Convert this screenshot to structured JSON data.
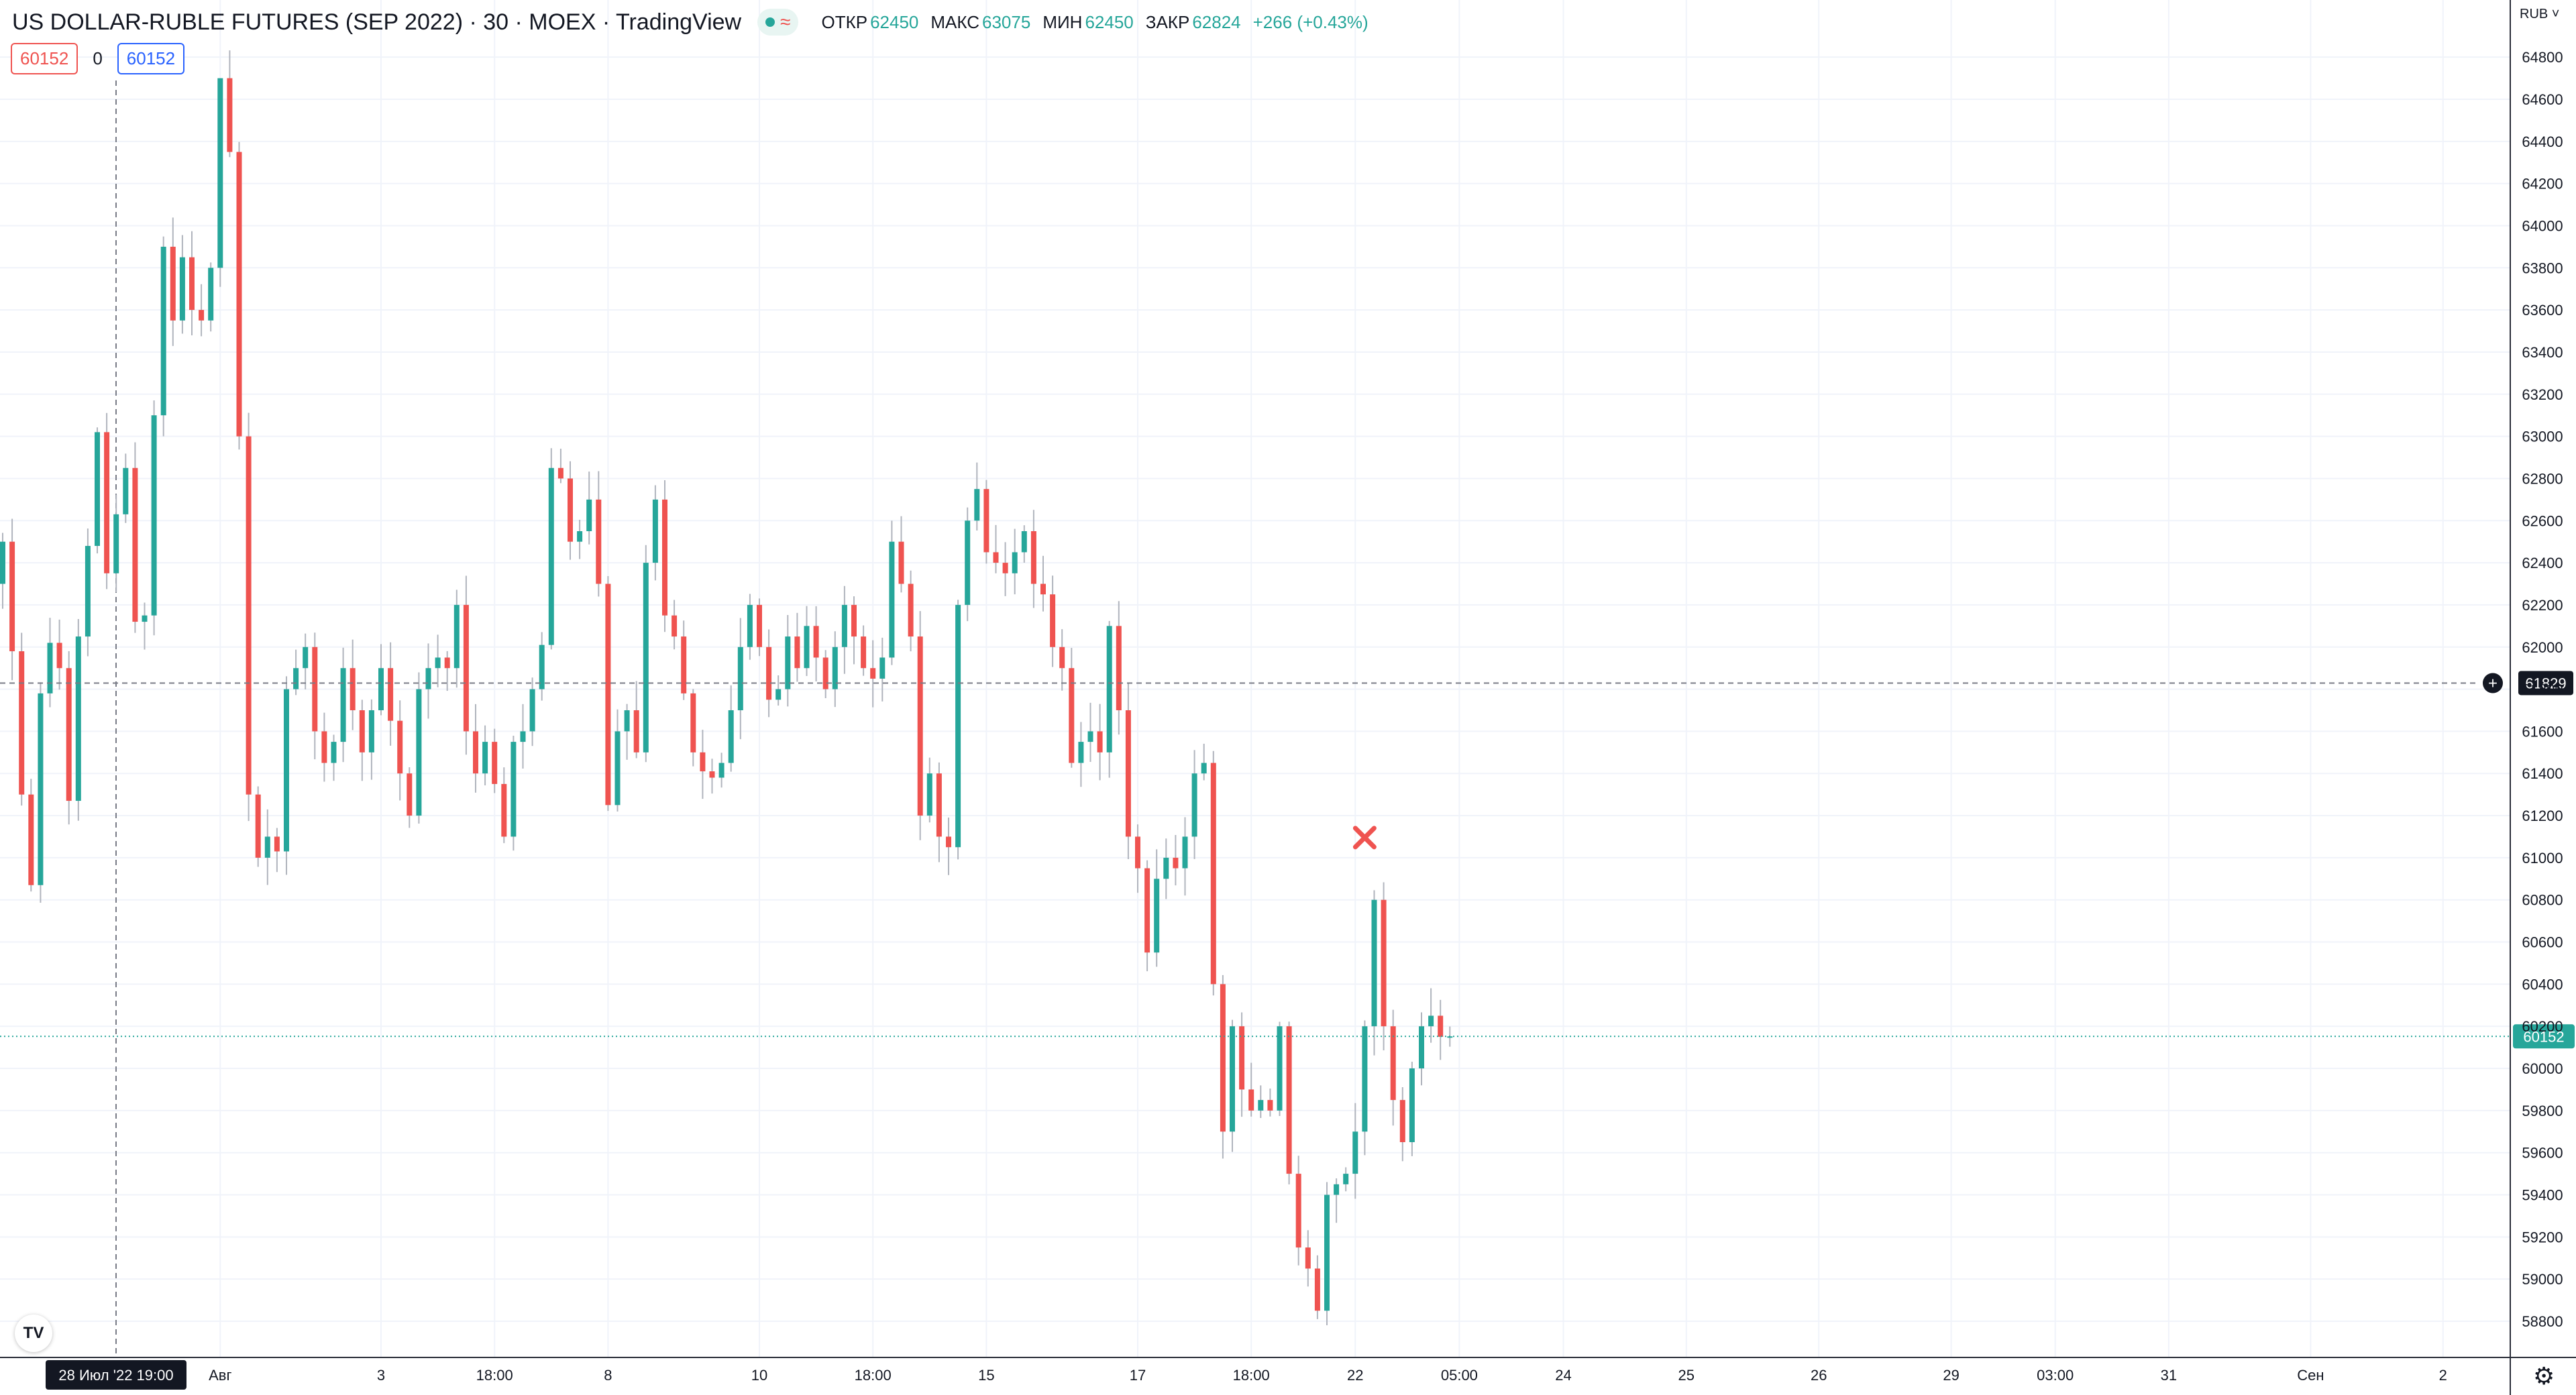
{
  "header": {
    "symbol": "US DOLLAR-RUBLE FUTURES (SEP 2022) · 30 · MOEX · TradingView",
    "market_status_icon": "market-open-dot",
    "ohlc": {
      "open_label": "ОТКР",
      "open": "62450",
      "high_label": "МАКС",
      "high": "63075",
      "low_label": "МИН",
      "low": "62450",
      "close_label": "ЗАКР",
      "close": "62824",
      "change": "+266 (+0.43%)"
    }
  },
  "order_panel": {
    "sell": "60152",
    "spread": "0",
    "buy": "60152"
  },
  "currency_label": "RUB",
  "crosshair": {
    "price_label": "61829",
    "time_label": "28 Июл '22   19:00"
  },
  "colors": {
    "up": "#26a69a",
    "down": "#ef5350",
    "grid": "#f0f3fa",
    "text": "#131722",
    "last_price": "#26a69a"
  },
  "chart_data": {
    "type": "candlestick",
    "title": "US DOLLAR-RUBLE FUTURES (SEP 2022)",
    "interval": "30",
    "exchange": "MOEX",
    "ylim": [
      58700,
      64900
    ],
    "y_ticks": [
      58800,
      59000,
      59200,
      59400,
      59600,
      59800,
      60000,
      60200,
      60400,
      60600,
      60800,
      61000,
      61200,
      61400,
      61600,
      61800,
      62000,
      62200,
      62400,
      62600,
      62800,
      63000,
      63200,
      63400,
      63600,
      63800,
      64000,
      64200,
      64400,
      64600,
      64800
    ],
    "x_ticks": [
      {
        "label": "Авг",
        "bar": 23
      },
      {
        "label": "3",
        "bar": 40
      },
      {
        "label": "18:00",
        "bar": 52
      },
      {
        "label": "8",
        "bar": 64
      },
      {
        "label": "10",
        "bar": 80
      },
      {
        "label": "18:00",
        "bar": 92
      },
      {
        "label": "15",
        "bar": 104
      },
      {
        "label": "17",
        "bar": 120
      },
      {
        "label": "18:00",
        "bar": 132
      },
      {
        "label": "22",
        "bar": 143
      },
      {
        "label": "05:00",
        "bar": 154
      },
      {
        "label": "24",
        "bar": 165
      },
      {
        "label": "25",
        "bar": 178
      },
      {
        "label": "26",
        "bar": 192
      },
      {
        "label": "29",
        "bar": 206
      },
      {
        "label": "03:00",
        "bar": 217
      },
      {
        "label": "31",
        "bar": 229
      },
      {
        "label": "Сен",
        "bar": 244
      },
      {
        "label": "2",
        "bar": 258
      }
    ],
    "last_price": 60152,
    "crosshair_price": 61829,
    "marker": {
      "type": "x",
      "price": 61000,
      "bar": 144
    },
    "closes": [
      62500,
      61980,
      61300,
      60870,
      61780,
      62020,
      61900,
      61270,
      62050,
      62480,
      63020,
      62350,
      62630,
      62850,
      62120,
      62150,
      63100,
      63900,
      63550,
      63850,
      63600,
      63550,
      63800,
      64700,
      64350,
      63000,
      61300,
      61000,
      61100,
      61030,
      61800,
      61900,
      62000,
      61600,
      61450,
      61550,
      61900,
      61700,
      61500,
      61700,
      61900,
      61650,
      61400,
      61200,
      61800,
      61900,
      61950,
      61900,
      62200,
      61600,
      61400,
      61550,
      61350,
      61100,
      61550,
      61600,
      61800,
      62010,
      62850,
      62800,
      62500,
      62550,
      62700,
      62300,
      61250,
      61600,
      61700,
      61500,
      62400,
      62700,
      62150,
      62050,
      61780,
      61500,
      61410,
      61380,
      61450,
      61700,
      62000,
      62200,
      62000,
      61750,
      61800,
      62050,
      61900,
      62100,
      61950,
      61800,
      62000,
      62200,
      62050,
      61900,
      61850,
      61950,
      62500,
      62300,
      62050,
      61200,
      61400,
      61100,
      61050,
      62200,
      62600,
      62750,
      62450,
      62400,
      62350,
      62450,
      62550,
      62300,
      62250,
      62000,
      61900,
      61450,
      61550,
      61600,
      61500,
      62100,
      61700,
      61100,
      60950,
      60550,
      60900,
      61000,
      60950,
      61100,
      61400,
      61450,
      60400,
      59700,
      60200,
      59900,
      59800,
      59850,
      59800,
      60200,
      59500,
      59150,
      59050,
      58850,
      59400,
      59450,
      59500,
      59700,
      60200,
      60800,
      60200,
      59850,
      59650,
      60000,
      60200,
      60250,
      60150,
      60152
    ],
    "min_lows": {
      "bar": 139,
      "price": 58810
    },
    "max_high": {
      "bar": 23,
      "price": 64700
    }
  }
}
